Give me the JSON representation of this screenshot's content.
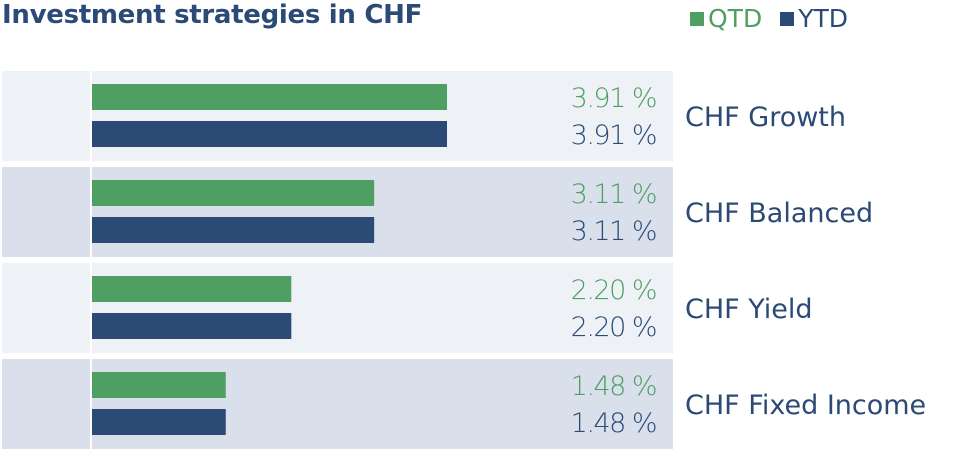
{
  "chart_data": {
    "type": "bar",
    "orientation": "horizontal",
    "title": "Investment strategies in CHF",
    "categories": [
      "CHF Growth",
      "CHF Balanced",
      "CHF Yield",
      "CHF Fixed Income"
    ],
    "series": [
      {
        "name": "QTD",
        "values": [
          3.91,
          3.11,
          2.2,
          1.48
        ],
        "labels": [
          "3.91 %",
          "3.11 %",
          "2.20 %",
          "1.48 %"
        ],
        "color": "#4e9f61"
      },
      {
        "name": "YTD",
        "values": [
          3.91,
          3.11,
          2.2,
          1.48
        ],
        "labels": [
          "3.91 %",
          "3.11 %",
          "2.20 %",
          "1.48 %"
        ],
        "color": "#2b4a76"
      }
    ],
    "xlim": [
      0,
      3.91
    ],
    "legend_position": "top-right",
    "row_colors": [
      "#eef2f7",
      "#d9e0ec"
    ],
    "title_color": "#2b4a76"
  }
}
